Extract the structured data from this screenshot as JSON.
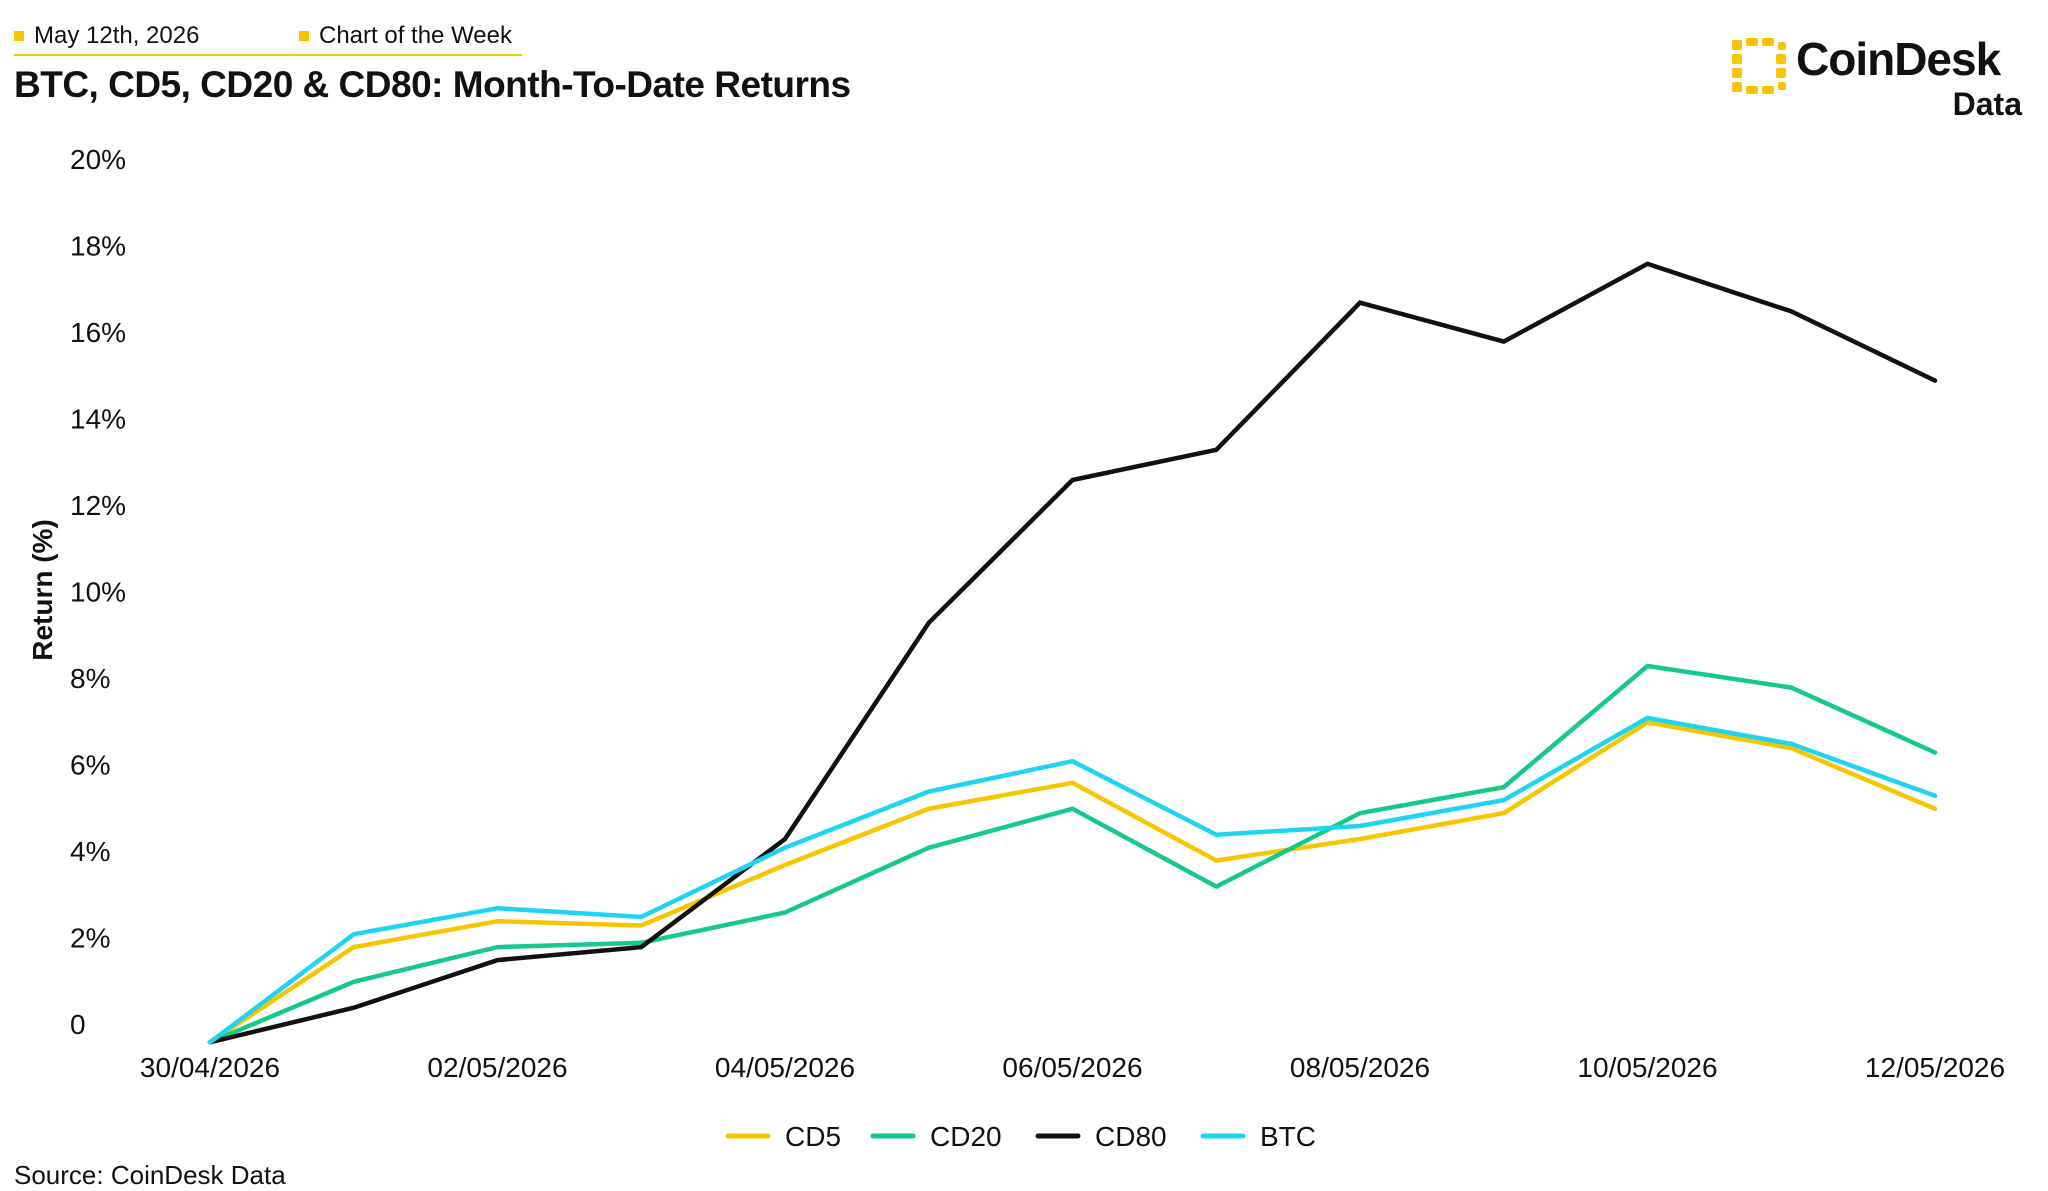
{
  "header": {
    "date": "May 12th, 2026",
    "tag": "Chart of the Week",
    "title": "BTC, CD5, CD20 & CD80: Month-To-Date Returns"
  },
  "logo": {
    "name": "CoinDesk",
    "sub": "Data",
    "accent": "#f7c600"
  },
  "source": "Source: CoinDesk Data",
  "chart_data": {
    "type": "line",
    "title": "BTC, CD5, CD20 & CD80: Month-To-Date Returns",
    "xlabel": "",
    "ylabel": "Return (%)",
    "ylim": [
      0,
      20
    ],
    "y_ticks": [
      0,
      2,
      4,
      6,
      8,
      10,
      12,
      14,
      16,
      18,
      20
    ],
    "y_tick_labels": [
      "0",
      "2%",
      "4%",
      "6%",
      "8%",
      "10%",
      "12%",
      "14%",
      "16%",
      "18%",
      "20%"
    ],
    "x": [
      "30/04/2026",
      "01/05/2026",
      "02/05/2026",
      "03/05/2026",
      "04/05/2026",
      "05/05/2026",
      "06/05/2026",
      "07/05/2026",
      "08/05/2026",
      "09/05/2026",
      "10/05/2026",
      "11/05/2026",
      "12/05/2026"
    ],
    "x_tick_labels": [
      "30/04/2026",
      "02/05/2026",
      "04/05/2026",
      "06/05/2026",
      "08/05/2026",
      "10/05/2026",
      "12/05/2026"
    ],
    "grid": false,
    "legend_position": "bottom",
    "series": [
      {
        "name": "CD5",
        "color": "#f7c600",
        "values": [
          -0.4,
          1.8,
          2.4,
          2.3,
          3.7,
          5.0,
          5.6,
          3.8,
          4.3,
          4.9,
          7.0,
          6.4,
          5.0
        ]
      },
      {
        "name": "CD20",
        "color": "#17c987",
        "values": [
          -0.4,
          1.0,
          1.8,
          1.9,
          2.6,
          4.1,
          5.0,
          3.2,
          4.9,
          5.5,
          8.3,
          7.8,
          6.3
        ]
      },
      {
        "name": "CD80",
        "color": "#111111",
        "values": [
          -0.4,
          0.4,
          1.5,
          1.8,
          4.3,
          9.3,
          12.6,
          13.3,
          16.7,
          15.8,
          17.6,
          16.5,
          14.9
        ]
      },
      {
        "name": "BTC",
        "color": "#1fd4f2",
        "values": [
          -0.4,
          2.1,
          2.7,
          2.5,
          4.1,
          5.4,
          6.1,
          4.4,
          4.6,
          5.2,
          7.1,
          6.5,
          5.3
        ]
      }
    ]
  }
}
